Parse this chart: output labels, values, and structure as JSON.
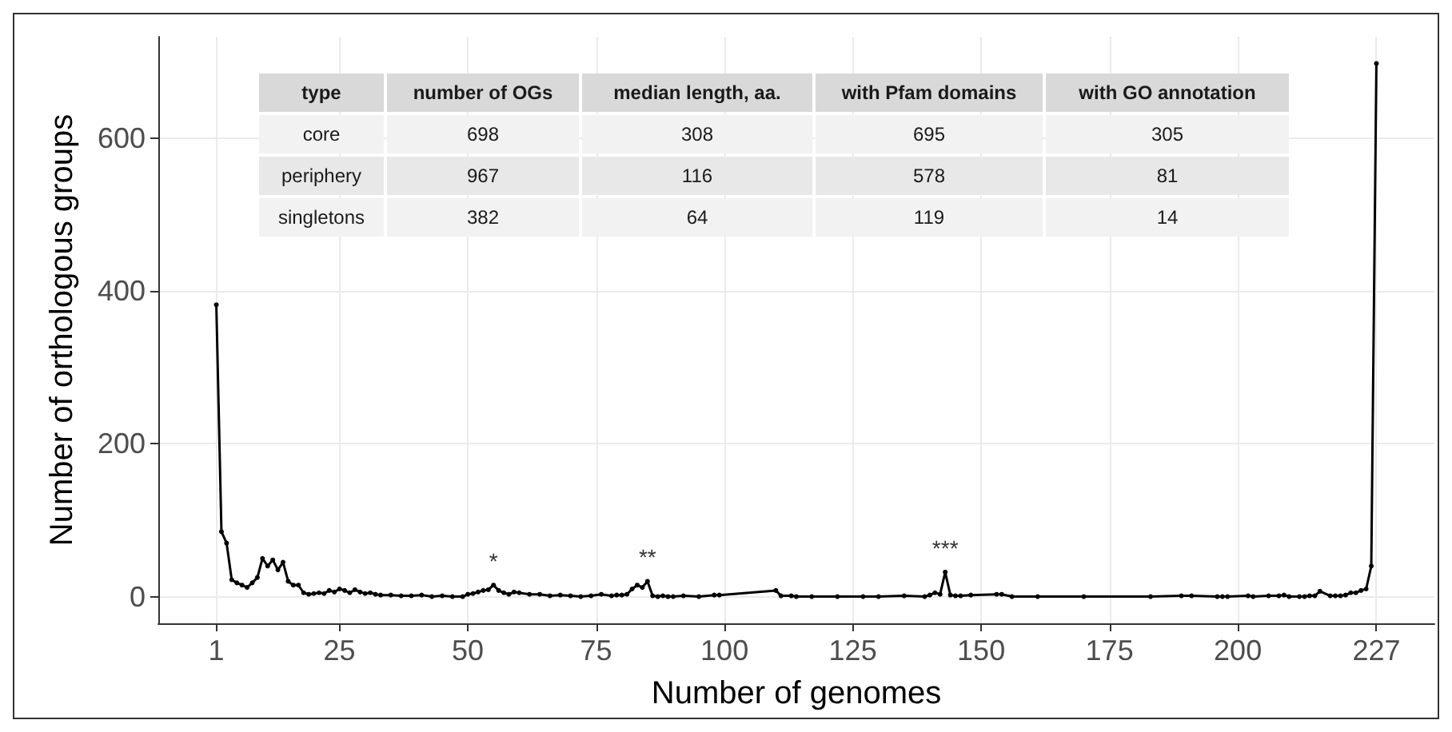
{
  "chart_data": {
    "type": "line",
    "xlabel": "Number of genomes",
    "ylabel": "Number of orthologous groups",
    "xlim": [
      -10.3,
      238.3
    ],
    "xticks": [
      1,
      25,
      50,
      75,
      100,
      125,
      150,
      175,
      200,
      227
    ],
    "ylim": [
      -35,
      733
    ],
    "yticks": [
      0,
      200,
      400,
      600
    ],
    "grid": true,
    "marker": "circle",
    "line_style": "solid",
    "series": [
      {
        "color": "#000000",
        "x": [
          1,
          2,
          3,
          4,
          5,
          6,
          7,
          8,
          9,
          10,
          11,
          12,
          13,
          14,
          15,
          16,
          17,
          18,
          19,
          20,
          21,
          22,
          23,
          24,
          25,
          26,
          27,
          28,
          29,
          30,
          31,
          32,
          33,
          35,
          37,
          39,
          41,
          43,
          45,
          47,
          49,
          50,
          51,
          52,
          53,
          54,
          55,
          56,
          57,
          58,
          59,
          60,
          62,
          64,
          66,
          68,
          70,
          72,
          74,
          76,
          78,
          79,
          80,
          81,
          82,
          83,
          84,
          85,
          86,
          87,
          88,
          89,
          90,
          92,
          95,
          98,
          99,
          110,
          111,
          113,
          114,
          117,
          122,
          127,
          130,
          135,
          139,
          140,
          141,
          142,
          143,
          144,
          145,
          146,
          148,
          153,
          154,
          156,
          161,
          170,
          183,
          189,
          191,
          196,
          197,
          198,
          202,
          203,
          206,
          208,
          209,
          210,
          212,
          213,
          214,
          215,
          216,
          218,
          219,
          220,
          221,
          222,
          223,
          224,
          225,
          226,
          227
        ],
        "values": [
          382,
          85,
          70,
          22,
          18,
          15,
          12,
          18,
          25,
          50,
          40,
          48,
          35,
          45,
          20,
          15,
          15,
          5,
          3,
          4,
          5,
          4,
          8,
          6,
          10,
          8,
          5,
          9,
          6,
          4,
          5,
          3,
          2,
          2,
          1,
          1,
          2,
          0,
          1,
          0,
          0,
          3,
          4,
          6,
          8,
          9,
          15,
          8,
          5,
          3,
          6,
          5,
          3,
          3,
          1,
          2,
          1,
          0,
          1,
          3,
          1,
          2,
          2,
          3,
          10,
          15,
          12,
          20,
          1,
          0,
          1,
          0,
          0,
          1,
          0,
          2,
          2,
          8,
          1,
          1,
          0,
          0,
          0,
          0,
          0,
          1,
          0,
          2,
          5,
          3,
          32,
          2,
          1,
          1,
          2,
          3,
          3,
          0,
          0,
          0,
          0,
          1,
          1,
          0,
          0,
          0,
          1,
          0,
          1,
          1,
          2,
          0,
          0,
          0,
          1,
          1,
          7,
          1,
          1,
          1,
          2,
          5,
          5,
          8,
          10,
          40,
          698
        ]
      }
    ],
    "annotations": [
      {
        "text": "*",
        "x": 55,
        "y": 15
      },
      {
        "text": "**",
        "x": 85,
        "y": 20
      },
      {
        "text": "***",
        "x": 143,
        "y": 32
      },
      "type",
      "number of OGs",
      "median length, aa.",
      "with Pfam domains",
      "with GO annotation",
      "core",
      "698",
      "308",
      "695",
      "305",
      "periphery",
      "967",
      "116",
      "578",
      "81",
      "singletons",
      "382",
      "64",
      "119",
      "14"
    ]
  }
}
